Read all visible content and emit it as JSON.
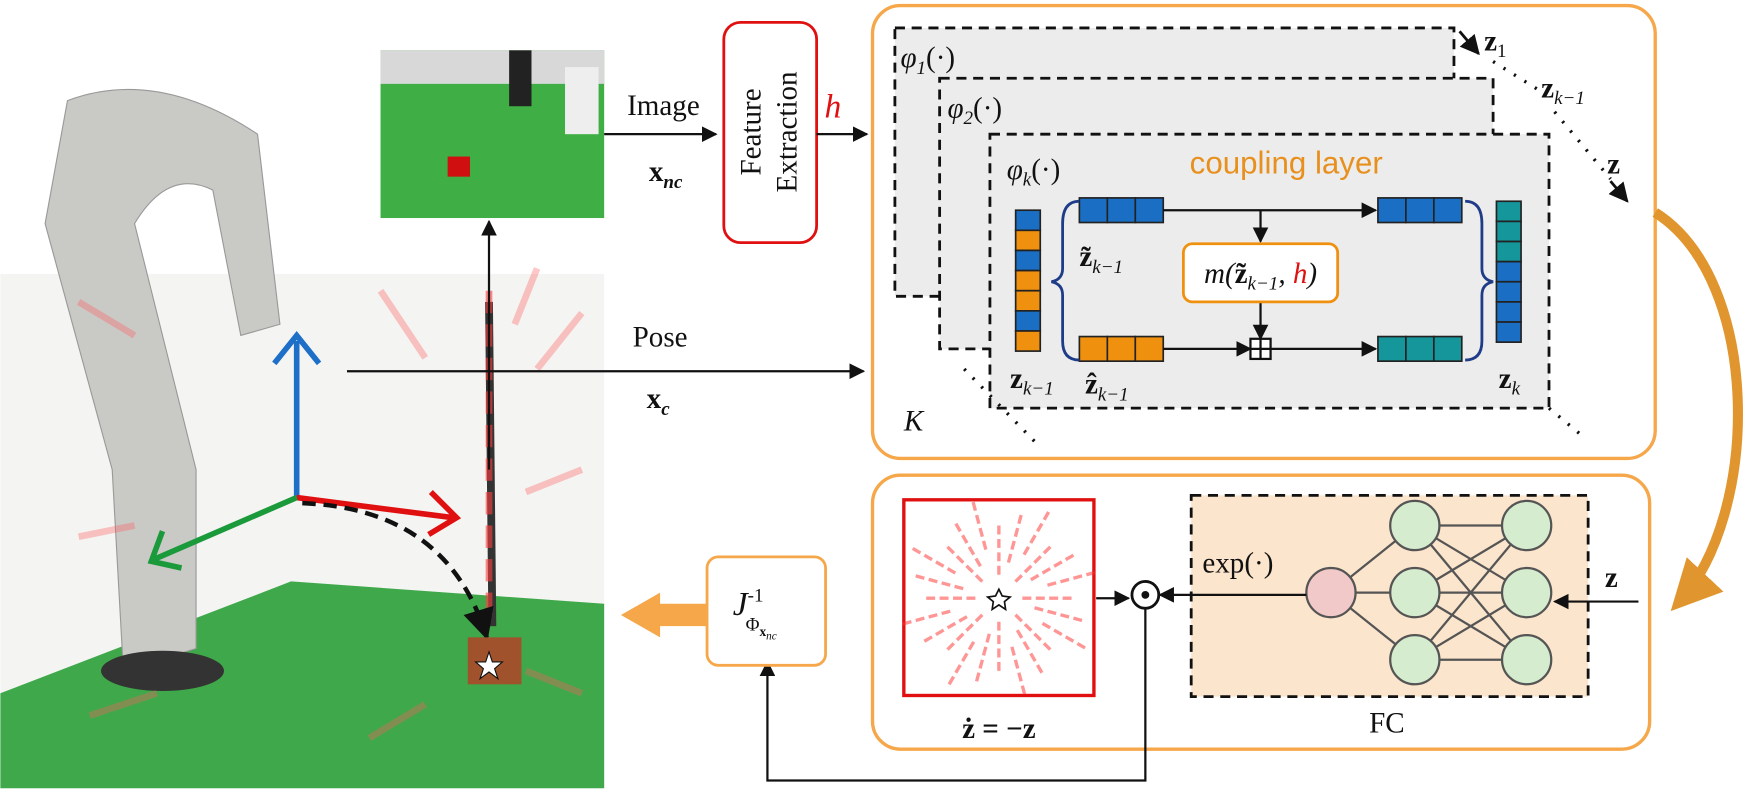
{
  "inputs": {
    "image_label": "Image",
    "image_var": {
      "base": "x",
      "sub": "nc"
    },
    "pose_label": "Pose",
    "pose_var": {
      "base": "x",
      "sub": "c"
    }
  },
  "feature_extraction": {
    "label_lines": [
      "Feature",
      "Extraction"
    ],
    "output": "h"
  },
  "flow": {
    "layers": [
      {
        "base": "φ",
        "sub": "1",
        "arg": "(·)"
      },
      {
        "base": "φ",
        "sub": "2",
        "arg": "(·)"
      },
      {
        "base": "φ",
        "sub": "k",
        "arg": "(·)"
      }
    ],
    "coupling_layer": "coupling layer",
    "input": {
      "base": "z",
      "sub": "k−1"
    },
    "upper": {
      "base": "z̃",
      "sub": "k−1"
    },
    "lower": {
      "base": "ẑ",
      "sub": "k−1"
    },
    "function": {
      "prefix": "m(",
      "base": "z̃",
      "sub": "k−1",
      "sep": ", ",
      "extra": "h",
      "suffix": ")"
    },
    "output": {
      "base": "z",
      "sub": "k"
    },
    "count": "K",
    "outputs": [
      {
        "base": "z",
        "sub": "1"
      },
      {
        "base": "z",
        "sub": "k−1"
      },
      {
        "base": "z"
      }
    ]
  },
  "dynamics": {
    "input": "z",
    "exp": "exp(·)",
    "field_label": "ż = −z",
    "network": "FC"
  },
  "jacobian": {
    "base": "J",
    "sup": "-1",
    "sub": "Φ",
    "sub2": "x",
    "sub3": "nc"
  }
}
